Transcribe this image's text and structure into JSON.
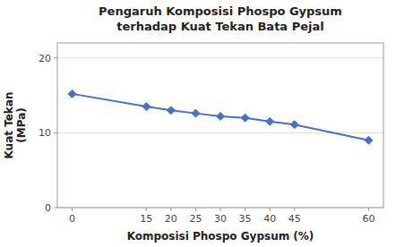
{
  "chart_data": {
    "type": "line",
    "title": "Pengaruh Komposisi Phospo Gypsum",
    "subtitle": "terhadap Kuat Tekan Bata Pejal",
    "xlabel": "Komposisi Phospo Gypsum (%)",
    "ylabel": "Kuat Tekan\n(MPa)",
    "x": [
      0,
      15,
      20,
      25,
      30,
      35,
      40,
      45,
      60
    ],
    "values": [
      15.2,
      13.5,
      13.0,
      12.6,
      12.2,
      12.0,
      11.5,
      11.1,
      9.0
    ],
    "xlim": [
      -3,
      63
    ],
    "ylim": [
      0,
      22
    ],
    "xticks": [
      0,
      15,
      20,
      25,
      30,
      35,
      40,
      45,
      60
    ],
    "yticks": [
      0,
      10,
      20
    ],
    "color": "#4472C4",
    "marker": "diamond",
    "grid": true
  }
}
